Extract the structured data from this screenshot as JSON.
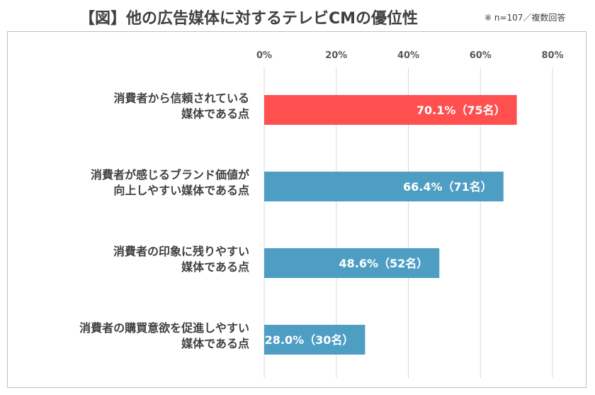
{
  "header": {
    "title": "【図】他の広告媒体に対するテレビCMの優位性",
    "note": "※ n=107／複数回答"
  },
  "colors": {
    "highlight": "#ff4f4f",
    "bar": "#4e9ec4",
    "grid": "#d9d9d9"
  },
  "chart_data": {
    "type": "bar",
    "orientation": "horizontal",
    "title": "【図】他の広告媒体に対するテレビCMの優位性",
    "xlim": [
      0,
      80
    ],
    "xticks": [
      "0%",
      "20%",
      "40%",
      "60%",
      "80%"
    ],
    "xtick_values": [
      0,
      20,
      40,
      60,
      80
    ],
    "axis_position": "top",
    "grid": true,
    "categories": [
      [
        "消費者から信頼されている",
        "媒体である点"
      ],
      [
        "消費者が感じるブランド価値が",
        "向上しやすい媒体である点"
      ],
      [
        "消費者の印象に残りやすい",
        "媒体である点"
      ],
      [
        "消費者の購買意欲を促進しやすい",
        "媒体である点"
      ]
    ],
    "values": [
      70.1,
      66.4,
      48.6,
      28.0
    ],
    "data_labels": [
      "70.1%（75名）",
      "66.4%（71名）",
      "48.6%（52名）",
      "28.0%（30名）"
    ],
    "highlight_index": 0
  }
}
